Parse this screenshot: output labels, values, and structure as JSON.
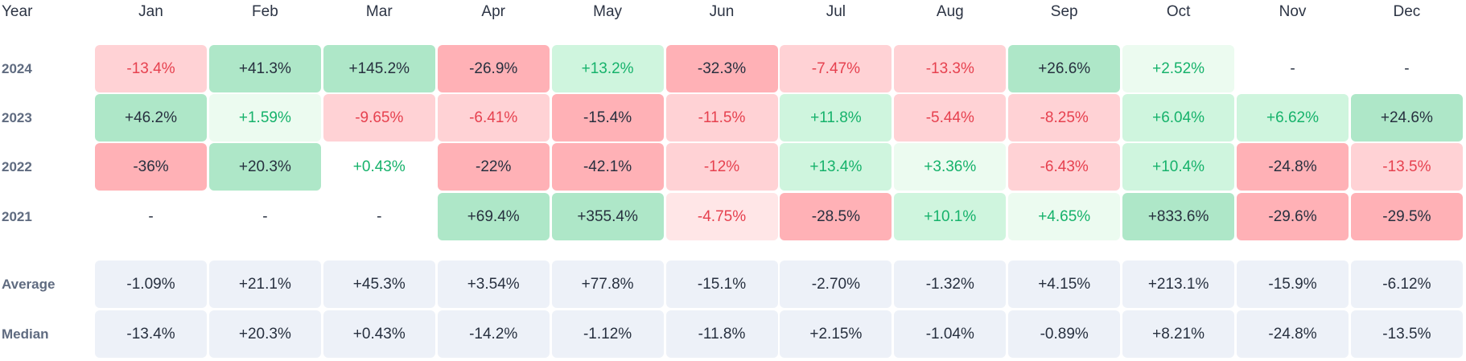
{
  "header": {
    "year_label": "Year",
    "months": [
      "Jan",
      "Feb",
      "Mar",
      "Apr",
      "May",
      "Jun",
      "Jul",
      "Aug",
      "Sep",
      "Oct",
      "Nov",
      "Dec"
    ]
  },
  "rows": [
    {
      "label": "2024",
      "values": [
        "-13.4%",
        "+41.3%",
        "+145.2%",
        "-26.9%",
        "+13.2%",
        "-32.3%",
        "-7.47%",
        "-13.3%",
        "+26.6%",
        "+2.52%",
        "-",
        "-"
      ],
      "styles": [
        "neg2",
        "pos3",
        "pos3",
        "neg3",
        "pos2",
        "neg3",
        "neg2",
        "neg2",
        "pos3",
        "pos1",
        "empty",
        "empty"
      ]
    },
    {
      "label": "2023",
      "values": [
        "+46.2%",
        "+1.59%",
        "-9.65%",
        "-6.41%",
        "-15.4%",
        "-11.5%",
        "+11.8%",
        "-5.44%",
        "-8.25%",
        "+6.04%",
        "+6.62%",
        "+24.6%"
      ],
      "styles": [
        "pos3",
        "pos1",
        "neg2",
        "neg2",
        "neg3",
        "neg2",
        "pos2",
        "neg2",
        "neg2",
        "pos2",
        "pos2",
        "pos3"
      ]
    },
    {
      "label": "2022",
      "values": [
        "-36%",
        "+20.3%",
        "+0.43%",
        "-22%",
        "-42.1%",
        "-12%",
        "+13.4%",
        "+3.36%",
        "-6.43%",
        "+10.4%",
        "-24.8%",
        "-13.5%"
      ],
      "styles": [
        "neg3",
        "pos3",
        "plain",
        "neg3",
        "neg3",
        "neg2",
        "pos2",
        "pos1",
        "neg2",
        "pos2",
        "neg3",
        "neg2"
      ]
    },
    {
      "label": "2021",
      "values": [
        "-",
        "-",
        "-",
        "+69.4%",
        "+355.4%",
        "-4.75%",
        "-28.5%",
        "+10.1%",
        "+4.65%",
        "+833.6%",
        "-29.6%",
        "-29.5%"
      ],
      "styles": [
        "empty",
        "empty",
        "empty",
        "pos3",
        "pos3",
        "neg1",
        "neg3",
        "pos2",
        "pos1",
        "pos3",
        "neg3",
        "neg3"
      ]
    }
  ],
  "stats": [
    {
      "label": "Average",
      "values": [
        "-1.09%",
        "+21.1%",
        "+45.3%",
        "+3.54%",
        "+77.8%",
        "-15.1%",
        "-2.70%",
        "-1.32%",
        "+4.15%",
        "+213.1%",
        "-15.9%",
        "-6.12%"
      ]
    },
    {
      "label": "Median",
      "values": [
        "-13.4%",
        "+20.3%",
        "+0.43%",
        "-14.2%",
        "-1.12%",
        "-11.8%",
        "+2.15%",
        "-1.04%",
        "-0.89%",
        "+8.21%",
        "-24.8%",
        "-13.5%"
      ]
    }
  ],
  "colors": {
    "positive_text": "#16b26b",
    "negative_text": "#e6414f",
    "positive_strong_bg": "#aee7c8",
    "negative_strong_bg": "#ffb1b6",
    "stat_bg": "#edf1f8"
  }
}
